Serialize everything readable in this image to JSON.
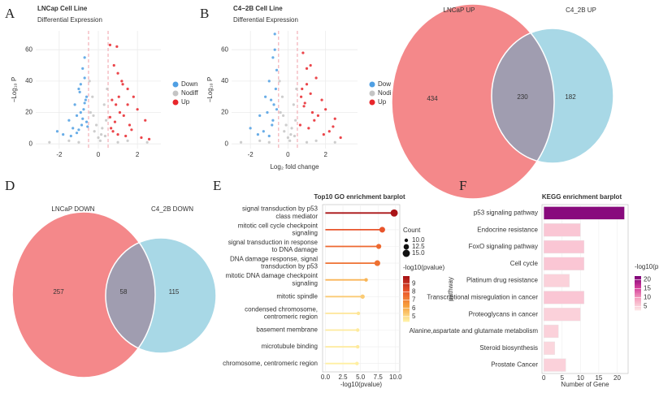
{
  "chart_data": [
    {
      "type": "volcano",
      "panel": "A",
      "title": "LNCap Cell Line",
      "subtitle": "Differential Expression",
      "ylabel": "−Log₁₀ P",
      "xlim": [
        -3.2,
        3.2
      ],
      "xticks": [
        -2,
        0,
        2
      ],
      "ylim": [
        -3,
        72
      ],
      "yticks": [
        0,
        20,
        40,
        60
      ],
      "vlines": [
        -0.5,
        0.5
      ],
      "grid": true,
      "series": [
        {
          "name": "Down",
          "color": "#4f9fe3",
          "x": [
            -0.7,
            -0.8,
            -0.9,
            -1.0,
            -1.2,
            -0.6,
            -0.75,
            -1.5,
            -2.1,
            -1.1,
            -0.85,
            -0.65,
            -1.3,
            -0.9,
            -0.7,
            -1.8,
            -0.8,
            -1.0,
            -0.6,
            -0.95,
            -1.4,
            -0.7,
            -0.55,
            -1.1
          ],
          "values": [
            55,
            48,
            38,
            35,
            25,
            30,
            22,
            15,
            8,
            18,
            12,
            28,
            10,
            20,
            42,
            6,
            16,
            9,
            14,
            33,
            5,
            26,
            11,
            7
          ]
        },
        {
          "name": "Nodiff",
          "color": "#c4c4c4",
          "x": [
            -0.4,
            -0.2,
            0,
            0.2,
            0.4,
            -0.3,
            0.1,
            0.3,
            -0.1,
            0.45,
            -2.5,
            2.5,
            -1.5,
            1.5,
            -0.45,
            0.35,
            -0.25,
            0.15,
            1.0,
            -1.0
          ],
          "values": [
            20,
            8,
            4,
            10,
            15,
            30,
            2,
            25,
            12,
            35,
            1,
            1,
            2,
            2,
            40,
            5,
            18,
            6,
            1,
            1
          ]
        },
        {
          "name": "Up",
          "color": "#e8262b",
          "x": [
            0.6,
            0.8,
            1.0,
            1.2,
            1.5,
            1.8,
            2.0,
            2.4,
            0.7,
            0.9,
            1.1,
            1.3,
            1.6,
            0.65,
            0.75,
            1.0,
            1.4,
            2.2,
            0.85,
            1.7,
            1.25,
            0.95,
            1.05,
            2.6,
            0.6,
            1.5
          ],
          "values": [
            63,
            50,
            45,
            40,
            35,
            30,
            22,
            15,
            28,
            25,
            20,
            18,
            12,
            10,
            8,
            6,
            5,
            4,
            14,
            9,
            38,
            62,
            30,
            3,
            17,
            25
          ]
        }
      ]
    },
    {
      "type": "volcano",
      "panel": "B",
      "title": "C4−2B Cell Line",
      "subtitle": "Differential Expression",
      "ylabel": "−Log₁₀ P",
      "xlabel": "Log₂ fold change",
      "xlim": [
        -3.0,
        3.7
      ],
      "xticks": [
        -2,
        0,
        2
      ],
      "ylim": [
        -3,
        72
      ],
      "yticks": [
        0,
        20,
        40,
        60
      ],
      "vlines": [
        -0.5,
        0.5
      ],
      "grid": true,
      "series": [
        {
          "name": "Dow",
          "color": "#4f9fe3",
          "x": [
            -0.7,
            -0.8,
            -0.6,
            -1.0,
            -1.2,
            -0.65,
            -0.75,
            -1.5,
            -2.0,
            -1.1,
            -0.85,
            -0.9,
            -1.3,
            -0.7,
            -0.8,
            -1.6,
            -0.6,
            -1.0
          ],
          "values": [
            70,
            55,
            47,
            40,
            30,
            35,
            25,
            18,
            10,
            20,
            12,
            28,
            8,
            60,
            15,
            6,
            22,
            5
          ]
        },
        {
          "name": "Nodi",
          "color": "#c4c4c4",
          "x": [
            -0.4,
            -0.2,
            0,
            0.2,
            0.4,
            -0.3,
            0.1,
            0.3,
            -0.1,
            0.45,
            -2.5,
            2.5,
            -1.5,
            1.5,
            -0.45,
            0.35,
            -0.25,
            0.15,
            1.0,
            -1.0
          ],
          "values": [
            20,
            8,
            4,
            10,
            15,
            30,
            2,
            25,
            12,
            35,
            1,
            1,
            2,
            2,
            40,
            5,
            18,
            6,
            1,
            1
          ]
        },
        {
          "name": "Up",
          "color": "#e8262b",
          "x": [
            0.8,
            1.2,
            1.5,
            1.0,
            0.7,
            1.8,
            2.0,
            2.5,
            0.9,
            1.3,
            1.6,
            0.65,
            1.1,
            2.2,
            2.8,
            0.75,
            1.4,
            1.9,
            1.0,
            0.85,
            2.4,
            1.2
          ],
          "values": [
            58,
            50,
            42,
            38,
            30,
            28,
            22,
            16,
            26,
            20,
            18,
            12,
            10,
            8,
            4,
            35,
            15,
            6,
            48,
            24,
            11,
            32
          ]
        }
      ]
    },
    {
      "type": "venn",
      "panel": "C",
      "sets": [
        "LNCaP UP",
        "C4_2B UP"
      ],
      "values": [
        434,
        230,
        182
      ],
      "colors": [
        "#f4888a",
        "#a8d8e6",
        "#a09db0"
      ],
      "label_color": "#3f9dc9"
    },
    {
      "type": "venn",
      "panel": "D",
      "sets": [
        "LNCaP DOWN",
        "C4_2B DOWN"
      ],
      "values": [
        257,
        58,
        115
      ],
      "colors": [
        "#f4888a",
        "#a8d8e6",
        "#a09db0"
      ],
      "label_color": "#3f9dc9"
    },
    {
      "type": "lollipop",
      "panel": "E",
      "title": "Top10 GO enrichment barplot",
      "xlabel": "-log10(pvalue)",
      "categories": [
        "signal transduction by p53\nclass mediator",
        "mitotic cell cycle checkpoint\nsignaling",
        "signal transduction in response\nto DNA damage",
        "DNA damage response, signal\ntransduction by p53",
        "mitotic DNA damage checkpoint\nsignaling",
        "mitotic spindle",
        "condensed chromosome,\ncentromeric region",
        "basement membrane",
        "microtubule binding",
        "chromosome, centromeric region"
      ],
      "label_colors": [
        "#e4491f",
        "#e4491f",
        "#e4491f",
        "#e4491f",
        "#e4491f",
        "#2a86bf",
        "#2a86bf",
        "#2a86bf",
        "#3a9a35",
        "#2a86bf"
      ],
      "values": [
        9.8,
        8.1,
        7.6,
        7.4,
        5.8,
        5.3,
        4.7,
        4.6,
        4.6,
        4.5
      ],
      "counts": [
        15,
        13,
        12,
        13,
        10,
        11,
        10,
        10,
        10,
        10
      ],
      "xlim": [
        -0.4,
        10.6
      ],
      "xticks": [
        {
          "value": 0,
          "label": "0.0"
        },
        2.5,
        {
          "value": 5,
          "label": "5.0"
        },
        7.5,
        {
          "value": 10,
          "label": "10.0"
        }
      ],
      "size_title": "Count",
      "size_ticks": [
        {
          "value": 10,
          "label": "10.0"
        },
        12.5,
        {
          "value": 15,
          "label": "15.0"
        }
      ],
      "color_title": "-log10(pvalue)",
      "color_ticks": [
        9,
        8,
        7,
        6,
        5
      ],
      "colorlim": [
        4.4,
        9.9
      ],
      "colors": [
        "#fff3a8",
        "#f7a23e",
        "#e9552b",
        "#a50f15"
      ],
      "grid": true
    },
    {
      "type": "barh",
      "panel": "F",
      "title": "KEGG enrichment barplot",
      "xlabel": "Number of Gene",
      "ylabel": "pathway",
      "categories": [
        "p53 signaling pathway",
        "Endocrine resistance",
        "FoxO signaling pathway",
        "Cell cycle",
        "Platinum drug resistance",
        "Transcriptional misregulation in cancer",
        "Proteoglycans in cancer",
        "Alanine,aspartate and glutamate metabolism",
        "Steroid biosynthesis",
        "Prostate Cancer"
      ],
      "values": [
        22,
        10,
        11,
        11,
        7,
        11,
        10,
        4,
        3,
        6
      ],
      "pvalues": [
        21,
        6,
        6,
        6,
        5,
        6,
        5,
        5,
        4.5,
        5
      ],
      "xlim": [
        -0.5,
        23
      ],
      "xticks": [
        0,
        5,
        10,
        15,
        20
      ],
      "color_title": "-log10(p",
      "color_ticks": [
        20,
        15,
        10,
        5
      ],
      "colorlim": [
        3,
        22
      ],
      "colors": [
        "#fde6e6",
        "#f6a3c0",
        "#d23a9a",
        "#7a0177"
      ],
      "grid": true
    }
  ]
}
